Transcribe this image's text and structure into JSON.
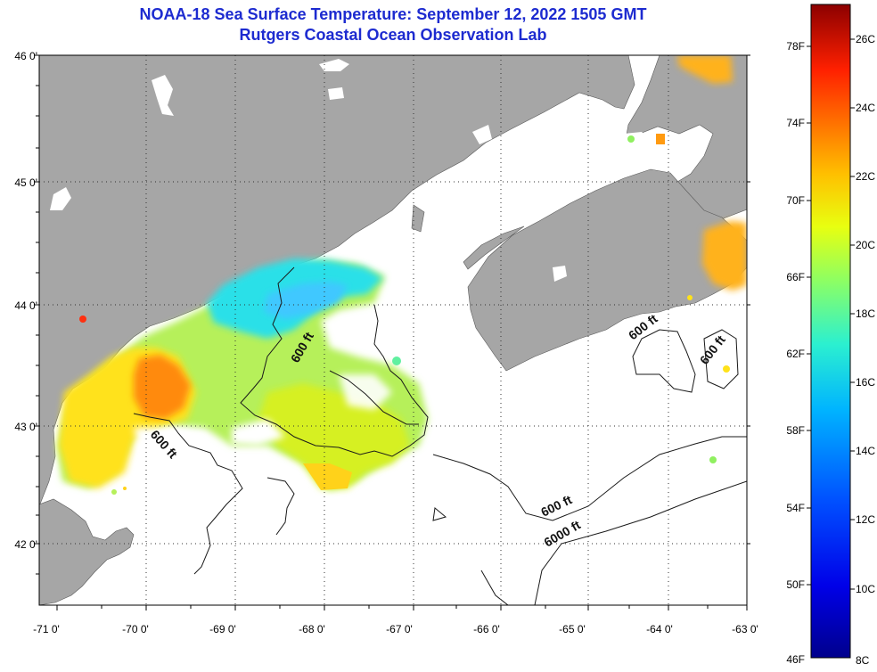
{
  "header": {
    "title": "NOAA-18 Sea Surface Temperature:  September 12, 2022 1505 GMT",
    "subtitle": "Rutgers Coastal Ocean Observation Lab"
  },
  "axes": {
    "x_ticks": [
      "-71 0'",
      "-70 0'",
      "-69 0'",
      "-68 0'",
      "-67 0'",
      "-66 0'",
      "-65 0'",
      "-64 0'",
      "-63 0'"
    ],
    "y_ticks": [
      "46 0'",
      "45 0'",
      "44 0'",
      "43 0'",
      "42 0'"
    ],
    "lon_range": [
      -71,
      -63
    ],
    "lat_range": [
      41.5,
      46
    ],
    "grid": "dotted"
  },
  "colors": {
    "land": "#a6a6a6",
    "water_no_data": "#ffffff",
    "contour": "#1a1a1a",
    "title": "#1d2bd0"
  },
  "contours": {
    "labels": [
      "600 ft",
      "600 ft",
      "600 ft",
      "600 ft",
      "600 ft",
      "6000 ft"
    ]
  },
  "colorbar": {
    "range_c": [
      8,
      27
    ],
    "fahrenheit_labels": [
      "78F",
      "74F",
      "70F",
      "66F",
      "62F",
      "58F",
      "54F",
      "50F",
      "46F"
    ],
    "celsius_labels": [
      "26C",
      "24C",
      "22C",
      "20C",
      "18C",
      "16C",
      "14C",
      "12C",
      "10C",
      "8C"
    ]
  }
}
